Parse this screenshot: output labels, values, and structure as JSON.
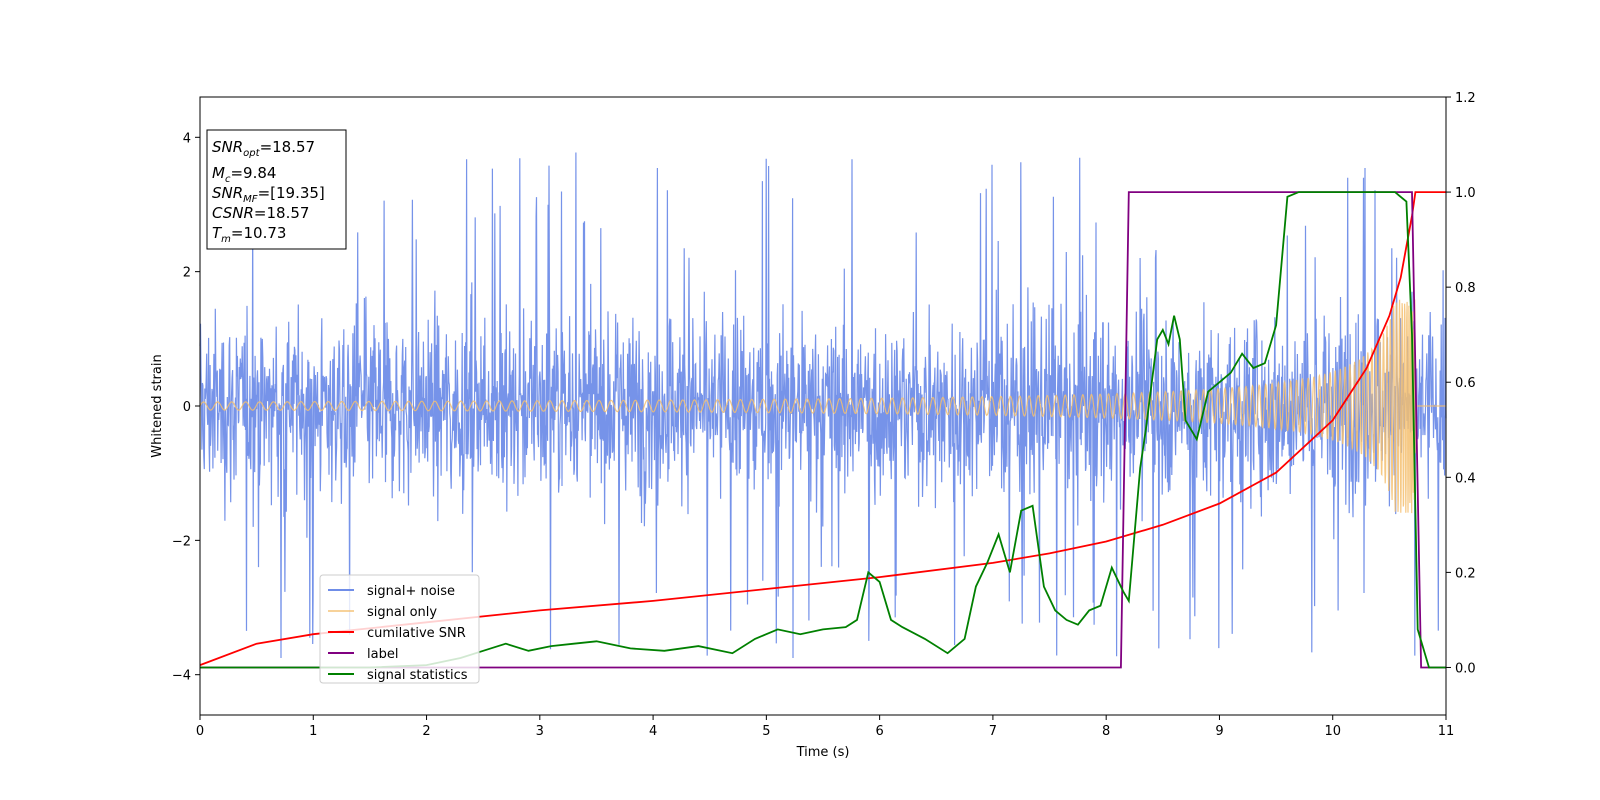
{
  "chart_data": {
    "type": "line",
    "xlabel": "Time (s)",
    "ylabel": "Whitened strain",
    "xlim": [
      0,
      11
    ],
    "ylim_left": [
      -4.6,
      4.6
    ],
    "ylim_right": [
      -0.1,
      1.2
    ],
    "x_ticks": [
      0,
      1,
      2,
      3,
      4,
      5,
      6,
      7,
      8,
      9,
      10,
      11
    ],
    "y_ticks_left": [
      -4,
      -2,
      0,
      2,
      4
    ],
    "y_ticks_left_labels": [
      "−4",
      "−2",
      "0",
      "2",
      "4"
    ],
    "y_ticks_right": [
      0.0,
      0.2,
      0.4,
      0.6,
      0.8,
      1.0,
      1.2
    ],
    "y_ticks_right_labels": [
      "0.0",
      "0.2",
      "0.4",
      "0.6",
      "0.8",
      "1.0",
      "1.2"
    ],
    "grid": false,
    "legend_position": "bottom-left",
    "series": [
      {
        "name": "signal+ noise",
        "axis": "left",
        "color": "#6f8de8",
        "style": "noise",
        "description_values": {
          "noise_band": [
            -1.8,
            1.8
          ],
          "spike_peaks": [
            4.2,
            -4.1
          ]
        }
      },
      {
        "name": "signal only",
        "axis": "left",
        "color": "#f5c070",
        "style": "chirp",
        "values": {
          "start_amplitude": 0.06,
          "peak_amplitude": 1.6,
          "merger_time": 10.73
        }
      },
      {
        "name": "cumilative SNR",
        "axis": "right",
        "color": "#ff0000",
        "x": [
          0,
          0.5,
          1,
          2,
          3,
          4,
          5,
          6,
          7,
          7.5,
          8,
          8.5,
          9,
          9.5,
          10,
          10.3,
          10.5,
          10.6,
          10.7,
          10.73,
          11
        ],
        "y": [
          0.005,
          0.05,
          0.07,
          0.095,
          0.12,
          0.14,
          0.165,
          0.19,
          0.22,
          0.24,
          0.265,
          0.3,
          0.345,
          0.41,
          0.52,
          0.63,
          0.74,
          0.82,
          0.95,
          1.0,
          1.0
        ]
      },
      {
        "name": "label",
        "axis": "right",
        "color": "#800080",
        "x": [
          0,
          8.13,
          8.2,
          10.7,
          10.78,
          11
        ],
        "y": [
          0.0,
          0.0,
          1.0,
          1.0,
          0.0,
          0.0
        ]
      },
      {
        "name": "signal statistics",
        "axis": "right",
        "color": "#008000",
        "x": [
          0,
          0.5,
          1,
          1.5,
          2,
          2.3,
          2.5,
          2.7,
          2.9,
          3.1,
          3.3,
          3.5,
          3.8,
          4.1,
          4.4,
          4.7,
          4.9,
          5.1,
          5.3,
          5.5,
          5.7,
          5.8,
          5.9,
          6.0,
          6.1,
          6.2,
          6.4,
          6.6,
          6.75,
          6.85,
          6.95,
          7.05,
          7.15,
          7.25,
          7.35,
          7.45,
          7.55,
          7.65,
          7.75,
          7.85,
          7.95,
          8.05,
          8.15,
          8.2,
          8.3,
          8.35,
          8.45,
          8.5,
          8.55,
          8.6,
          8.65,
          8.7,
          8.8,
          8.9,
          9.0,
          9.1,
          9.2,
          9.3,
          9.4,
          9.5,
          9.6,
          9.7,
          9.85,
          10.0,
          10.2,
          10.4,
          10.55,
          10.65,
          10.7,
          10.75,
          10.85,
          11
        ],
        "y": [
          0.0,
          0.0,
          0.0,
          0.0,
          0.005,
          0.02,
          0.035,
          0.05,
          0.035,
          0.045,
          0.05,
          0.055,
          0.04,
          0.035,
          0.045,
          0.03,
          0.06,
          0.08,
          0.07,
          0.08,
          0.085,
          0.1,
          0.2,
          0.18,
          0.1,
          0.085,
          0.06,
          0.03,
          0.06,
          0.17,
          0.22,
          0.28,
          0.2,
          0.33,
          0.34,
          0.17,
          0.12,
          0.1,
          0.09,
          0.12,
          0.13,
          0.21,
          0.16,
          0.14,
          0.42,
          0.5,
          0.69,
          0.71,
          0.68,
          0.74,
          0.69,
          0.52,
          0.48,
          0.58,
          0.6,
          0.62,
          0.66,
          0.63,
          0.64,
          0.72,
          0.99,
          1.0,
          1.0,
          1.0,
          1.0,
          1.0,
          1.0,
          0.98,
          0.7,
          0.08,
          0.0,
          0.0
        ]
      }
    ],
    "legend_entries": [
      "signal+ noise",
      "signal only",
      "cumilative SNR",
      "label",
      "signal statistics"
    ],
    "info_box": {
      "snr_opt": {
        "base": "SNR",
        "sub": "opt",
        "value": "=18.57"
      },
      "mc": {
        "base": "M",
        "sub": "c",
        "value": "=9.84"
      },
      "snr_mf": {
        "base": "SNR",
        "sub": "MF",
        "value": "=[19.35]"
      },
      "csnr": {
        "base": "CSNR",
        "value": "=18.57"
      },
      "tm": {
        "base": "T",
        "sub": "m",
        "value": "=10.73"
      }
    }
  }
}
